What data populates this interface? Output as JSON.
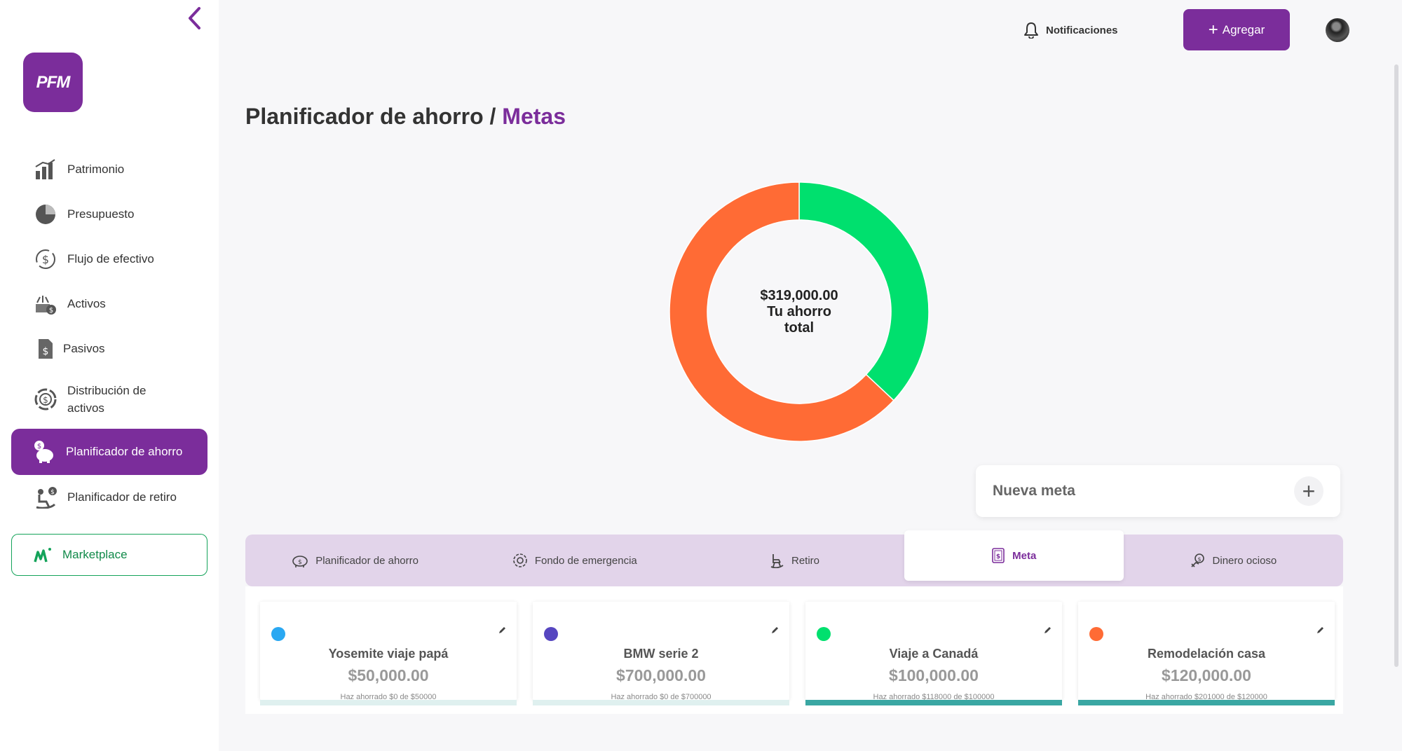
{
  "sidebar": {
    "logo_text": "PFM",
    "items": [
      {
        "label": "Patrimonio",
        "icon": "bar-chart-icon"
      },
      {
        "label": "Presupuesto",
        "icon": "pie-chart-icon"
      },
      {
        "label": "Flujo de efectivo",
        "icon": "cash-flow-icon"
      },
      {
        "label": "Activos",
        "icon": "assets-icon"
      },
      {
        "label": "Pasivos",
        "icon": "liabilities-icon"
      },
      {
        "label": "Distribución de activos",
        "icon": "distribution-icon"
      },
      {
        "label": "Planificador de ahorro",
        "icon": "piggy-bank-icon",
        "active": true
      },
      {
        "label": "Planificador de retiro",
        "icon": "retirement-icon"
      }
    ],
    "marketplace": "Marketplace"
  },
  "topbar": {
    "notifications": "Notificaciones",
    "add_button": "Agregar"
  },
  "page": {
    "title": "Planificador de ahorro /",
    "title_accent": "Metas"
  },
  "donut": {
    "amount": "$319,000.00",
    "label_line1": "Tu ahorro",
    "label_line2": "total"
  },
  "chart_data": {
    "type": "pie",
    "categories": [
      "Viaje a Canadá",
      "Remodelación casa"
    ],
    "values": [
      118000,
      201000
    ],
    "colors": [
      "#00e06e",
      "#ff6b35"
    ]
  },
  "new_goal": {
    "label": "Nueva meta"
  },
  "tabs": [
    {
      "label": "Planificador de ahorro",
      "icon": "piggy-bank-icon"
    },
    {
      "label": "Fondo de emergencia",
      "icon": "emergency-icon"
    },
    {
      "label": "Retiro",
      "icon": "rocking-chair-icon"
    },
    {
      "label": "Meta",
      "icon": "goal-icon",
      "active": true
    },
    {
      "label": "Dinero ocioso",
      "icon": "idle-money-icon"
    }
  ],
  "goals": [
    {
      "name": "Yosemite viaje papá",
      "amount": "$50,000.00",
      "saved": "Haz ahorrado $0 de $50000",
      "color": "#2aa8f2",
      "progress": 0
    },
    {
      "name": "BMW serie 2",
      "amount": "$700,000.00",
      "saved": "Haz ahorrado $0 de $700000",
      "color": "#5646c0",
      "progress": 0
    },
    {
      "name": "Viaje a Canadá",
      "amount": "$100,000.00",
      "saved": "Haz ahorrado $118000 de $100000",
      "color": "#00e06e",
      "progress": 1
    },
    {
      "name": "Remodelación casa",
      "amount": "$120,000.00",
      "saved": "Haz ahorrado $201000 de $120000",
      "color": "#ff6b35",
      "progress": 1
    }
  ]
}
